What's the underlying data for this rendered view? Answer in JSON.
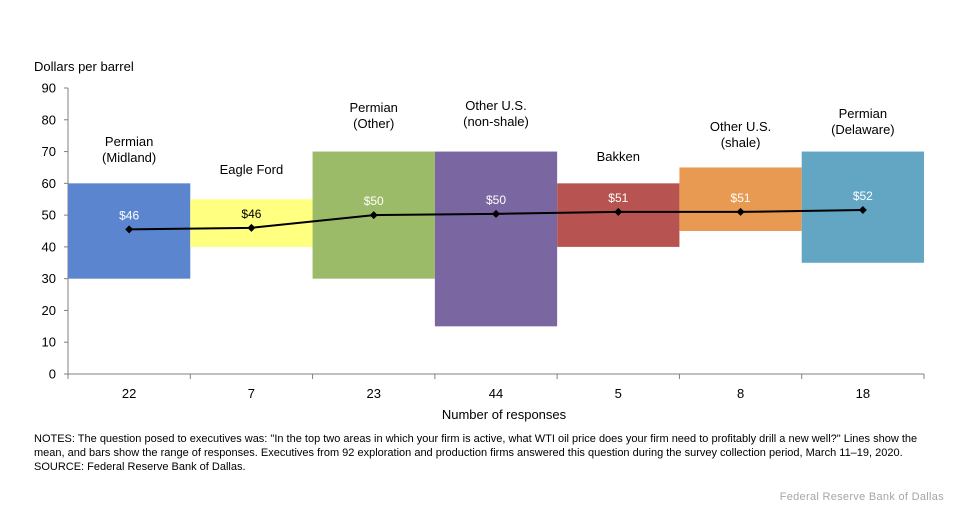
{
  "chart_data": {
    "type": "bar",
    "title": "",
    "ylabel": "Dollars per barrel",
    "xlabel": "Number of responses",
    "ylim": [
      0,
      90
    ],
    "yticks": [
      0,
      10,
      20,
      30,
      40,
      50,
      60,
      70,
      80,
      90
    ],
    "categories": [
      {
        "name": "Permian\n(Midland)",
        "responses": 22,
        "low": 30,
        "high": 60,
        "mean": 45.5,
        "mean_label": "$46",
        "color": "#5b86cf"
      },
      {
        "name": "Eagle Ford",
        "responses": 7,
        "low": 40,
        "high": 55,
        "mean": 46,
        "mean_label": "$46",
        "color": "#ffff80"
      },
      {
        "name": "Permian\n(Other)",
        "responses": 23,
        "low": 30,
        "high": 70,
        "mean": 50,
        "mean_label": "$50",
        "color": "#9cbb68"
      },
      {
        "name": "Other U.S.\n(non-shale)",
        "responses": 44,
        "low": 15,
        "high": 70,
        "mean": 50.4,
        "mean_label": "$50",
        "color": "#7a67a2"
      },
      {
        "name": "Bakken",
        "responses": 5,
        "low": 40,
        "high": 60,
        "mean": 51,
        "mean_label": "$51",
        "color": "#b75452"
      },
      {
        "name": "Other U.S.\n(shale)",
        "responses": 8,
        "low": 45,
        "high": 65,
        "mean": 51,
        "mean_label": "$51",
        "color": "#e89a52"
      },
      {
        "name": "Permian\n(Delaware)",
        "responses": 18,
        "low": 35,
        "high": 70,
        "mean": 51.6,
        "mean_label": "$52",
        "color": "#62a6c4"
      }
    ]
  },
  "notes": "NOTES: The question posed to executives was: \"In the top two areas in which your firm is active, what WTI oil price does your firm need to profitably drill a new well?\" Lines show the mean, and bars show the range of responses. Executives from 92 exploration and production firms answered this question during the survey collection period, March 11–19, 2020.",
  "source": "SOURCE: Federal Reserve Bank of Dallas.",
  "credit": "Federal Reserve Bank of Dallas"
}
